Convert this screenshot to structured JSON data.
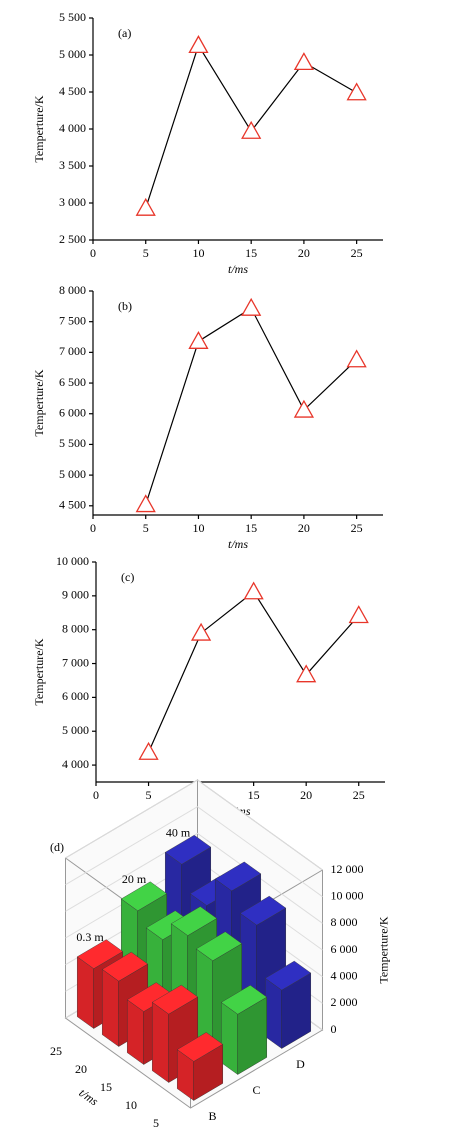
{
  "chart_data": [
    {
      "type": "line",
      "label": "(a)",
      "xlabel": "t/ms",
      "ylabel": "Temperture/K",
      "x": [
        5,
        10,
        15,
        20,
        25
      ],
      "values": [
        2930,
        5130,
        3970,
        4900,
        4490
      ],
      "color": "#e8362a",
      "xlim": [
        0,
        27.5
      ],
      "xticks": [
        0,
        5,
        10,
        15,
        20,
        25
      ],
      "ylim": [
        2500,
        5500
      ],
      "yticks": [
        {
          "value": 2500,
          "label": "2 500"
        },
        {
          "value": 3000,
          "label": "3 000"
        },
        {
          "value": 3500,
          "label": "3 500"
        },
        {
          "value": 4000,
          "label": "4 000"
        },
        {
          "value": 4500,
          "label": "4 500"
        },
        {
          "value": 5000,
          "label": "5 000"
        },
        {
          "value": 5500,
          "label": "5 500"
        }
      ]
    },
    {
      "type": "line",
      "label": "(b)",
      "xlabel": "t/ms",
      "ylabel": "Temperture/K",
      "x": [
        5,
        10,
        15,
        20,
        25
      ],
      "values": [
        4520,
        7180,
        7720,
        6060,
        6880
      ],
      "color": "#e8362a",
      "xlim": [
        0,
        27.5
      ],
      "xticks": [
        0,
        5,
        10,
        15,
        20,
        25
      ],
      "ylim": [
        4350,
        8000
      ],
      "yticks": [
        {
          "value": 4500,
          "label": "4 500"
        },
        {
          "value": 5000,
          "label": "5 000"
        },
        {
          "value": 5500,
          "label": "5 500"
        },
        {
          "value": 6000,
          "label": "6 000"
        },
        {
          "value": 6500,
          "label": "6 500"
        },
        {
          "value": 7000,
          "label": "7 000"
        },
        {
          "value": 7500,
          "label": "7 500"
        },
        {
          "value": 8000,
          "label": "8 000"
        }
      ]
    },
    {
      "type": "line",
      "label": "(c)",
      "xlabel": "t/ms",
      "ylabel": "Temperture/K",
      "x": [
        5,
        10,
        15,
        20,
        25
      ],
      "values": [
        4380,
        7900,
        9120,
        6670,
        8420
      ],
      "color": "#e8362a",
      "xlim": [
        0,
        27.5
      ],
      "xticks": [
        0,
        5,
        10,
        15,
        20,
        25
      ],
      "ylim": [
        3500,
        10000
      ],
      "yticks": [
        {
          "value": 4000,
          "label": "4 000"
        },
        {
          "value": 5000,
          "label": "5 000"
        },
        {
          "value": 6000,
          "label": "6 000"
        },
        {
          "value": 7000,
          "label": "7 000"
        },
        {
          "value": 8000,
          "label": "8 000"
        },
        {
          "value": 9000,
          "label": "9 000"
        },
        {
          "value": 10000,
          "label": "10 000"
        }
      ]
    },
    {
      "type": "bar3d",
      "label": "(d)",
      "xlabel": "t/ms",
      "zlabel": "Temperture/K",
      "categories": [
        "5",
        "10",
        "15",
        "20",
        "25"
      ],
      "groups": [
        "B",
        "C",
        "D"
      ],
      "series": [
        {
          "label": "0.3 m",
          "color": "#e8262a",
          "values": [
            2930,
            5130,
            3970,
            4900,
            4490
          ]
        },
        {
          "label": "20 m",
          "color": "#3cc040",
          "values": [
            4520,
            7180,
            7720,
            6060,
            6880
          ]
        },
        {
          "label": "40 m",
          "color": "#2b2bb0",
          "values": [
            4380,
            7900,
            9120,
            6670,
            8420
          ]
        }
      ],
      "zlim": [
        0,
        12000
      ],
      "zticks": [
        0,
        {
          "value": 2000,
          "label": "2 000"
        },
        {
          "value": 4000,
          "label": "4 000"
        },
        {
          "value": 6000,
          "label": "6 000"
        },
        {
          "value": 8000,
          "label": "8 000"
        },
        {
          "value": 10000,
          "label": "10 000"
        },
        {
          "value": 12000,
          "label": "12 000"
        }
      ]
    }
  ]
}
